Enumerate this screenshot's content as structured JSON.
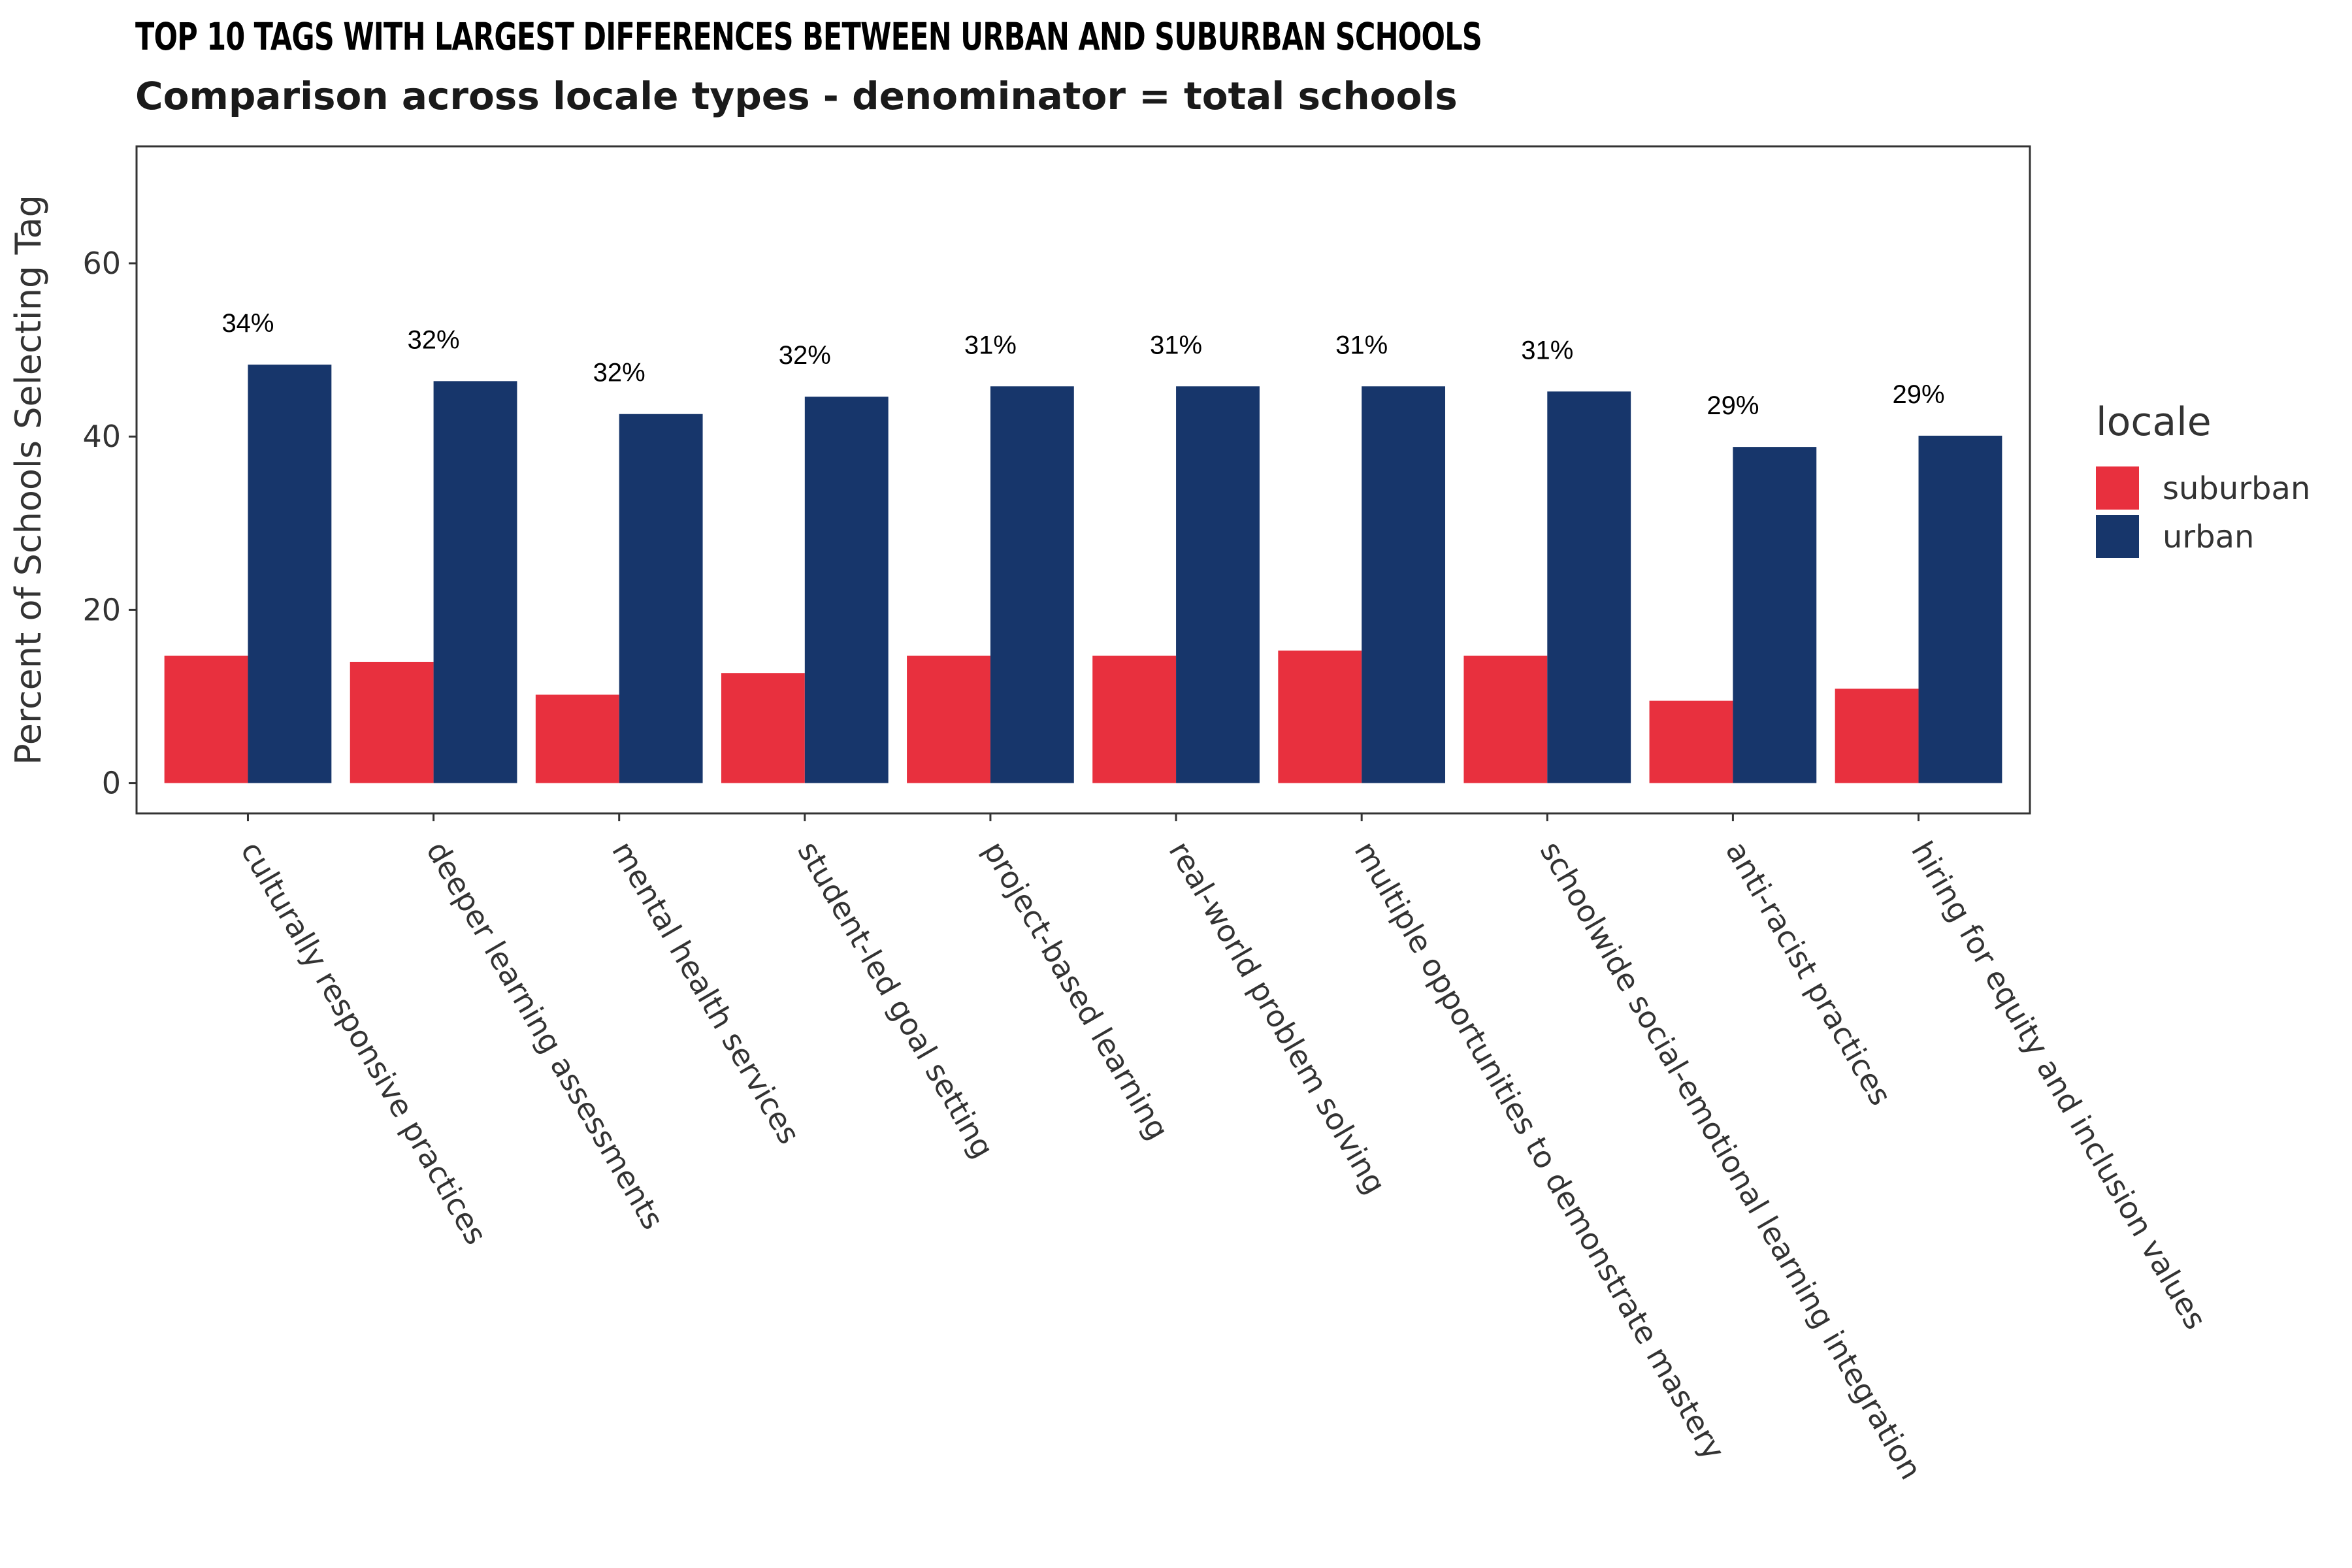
{
  "chart_data": {
    "type": "bar",
    "title": "TOP 10 TAGS WITH LARGEST DIFFERENCES BETWEEN URBAN AND SUBURBAN SCHOOLS",
    "subtitle": "Comparison across locale types - denominator = total schools",
    "xlabel": "",
    "ylabel": "Percent of Schools Selecting Tag",
    "ylim": [
      -3.5,
      73.5
    ],
    "yticks": [
      0,
      20,
      40,
      60
    ],
    "categories": [
      "culturally responsive practices",
      "deeper learning assessments",
      "mental health services",
      "student-led goal setting",
      "project-based learning",
      "real-world problem solving",
      "multiple opportunities to demonstrate mastery",
      "schoolwide social-emotional learning integration",
      "anti-racist practices",
      "hiring for equity and inclusion values"
    ],
    "series": [
      {
        "name": "suburban",
        "color": "#E8303E",
        "values": [
          14.7,
          14.0,
          10.2,
          12.7,
          14.7,
          14.7,
          15.3,
          14.7,
          9.5,
          10.9
        ]
      },
      {
        "name": "urban",
        "color": "#17366B",
        "values": [
          48.3,
          46.4,
          42.6,
          44.6,
          45.8,
          45.8,
          45.8,
          45.2,
          38.8,
          40.1
        ]
      }
    ],
    "data_labels": [
      "34%",
      "32%",
      "32%",
      "32%",
      "31%",
      "31%",
      "31%",
      "31%",
      "29%",
      "29%"
    ],
    "legend": {
      "title": "locale",
      "position": "right"
    },
    "grid": false
  }
}
